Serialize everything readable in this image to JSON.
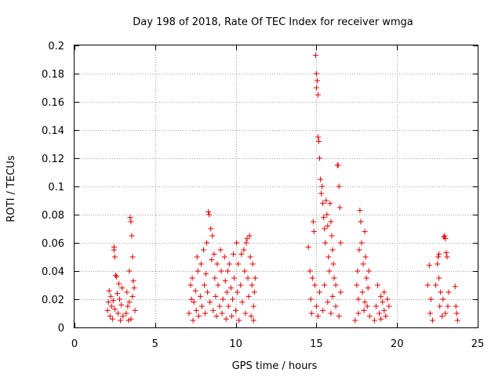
{
  "chart_data": {
    "type": "scatter",
    "title": "Day 198 of 2018, Rate Of TEC Index for receiver wmga",
    "xlabel": "GPS time / hours",
    "ylabel": "ROTI / TECUs",
    "xlim": [
      0,
      25
    ],
    "ylim": [
      0,
      0.2
    ],
    "grid": true,
    "marker": "+",
    "x_ticks": [
      0,
      5,
      10,
      15,
      20,
      25
    ],
    "x_tick_labels": [
      "0",
      "5",
      "10",
      "15",
      "20",
      "25"
    ],
    "y_ticks": [
      0,
      0.02,
      0.04,
      0.06,
      0.08,
      0.1,
      0.12,
      0.14,
      0.16,
      0.18,
      0.2
    ],
    "y_tick_labels": [
      "0",
      "0.02",
      "0.04",
      "0.06",
      "0.08",
      "0.1",
      "0.12",
      "0.14",
      "0.16",
      "0.18",
      "0.2"
    ],
    "series": [
      {
        "name": "wmga",
        "color": "#e00000",
        "points": [
          [
            2.05,
            0.012
          ],
          [
            2.1,
            0.018
          ],
          [
            2.15,
            0.026
          ],
          [
            2.2,
            0.008
          ],
          [
            2.25,
            0.022
          ],
          [
            2.3,
            0.015
          ],
          [
            2.35,
            0.006
          ],
          [
            2.4,
            0.019
          ],
          [
            2.45,
            0.057
          ],
          [
            2.45,
            0.055
          ],
          [
            2.5,
            0.05
          ],
          [
            2.5,
            0.013
          ],
          [
            2.55,
            0.037
          ],
          [
            2.6,
            0.036
          ],
          [
            2.65,
            0.024
          ],
          [
            2.7,
            0.01
          ],
          [
            2.75,
            0.031
          ],
          [
            2.8,
            0.02
          ],
          [
            2.85,
            0.005
          ],
          [
            2.9,
            0.016
          ],
          [
            2.95,
            0.028
          ],
          [
            3.0,
            0.008
          ],
          [
            3.2,
            0.01
          ],
          [
            3.25,
            0.025
          ],
          [
            3.3,
            0.015
          ],
          [
            3.35,
            0.005
          ],
          [
            3.4,
            0.04
          ],
          [
            3.45,
            0.078
          ],
          [
            3.5,
            0.075
          ],
          [
            3.55,
            0.065
          ],
          [
            3.6,
            0.05
          ],
          [
            3.65,
            0.033
          ],
          [
            3.7,
            0.028
          ],
          [
            3.75,
            0.012
          ],
          [
            3.5,
            0.006
          ],
          [
            3.4,
            0.018
          ],
          [
            3.6,
            0.022
          ],
          [
            7.1,
            0.01
          ],
          [
            7.2,
            0.03
          ],
          [
            7.25,
            0.02
          ],
          [
            7.3,
            0.035
          ],
          [
            7.35,
            0.005
          ],
          [
            7.4,
            0.018
          ],
          [
            7.5,
            0.026
          ],
          [
            7.55,
            0.012
          ],
          [
            7.6,
            0.05
          ],
          [
            7.65,
            0.04
          ],
          [
            7.7,
            0.008
          ],
          [
            7.8,
            0.022
          ],
          [
            7.85,
            0.045
          ],
          [
            7.9,
            0.015
          ],
          [
            8.0,
            0.055
          ],
          [
            8.05,
            0.03
          ],
          [
            8.1,
            0.01
          ],
          [
            8.15,
            0.038
          ],
          [
            8.2,
            0.06
          ],
          [
            8.25,
            0.025
          ],
          [
            8.3,
            0.082
          ],
          [
            8.35,
            0.08
          ],
          [
            8.4,
            0.018
          ],
          [
            8.45,
            0.07
          ],
          [
            8.5,
            0.048
          ],
          [
            8.55,
            0.065
          ],
          [
            8.6,
            0.012
          ],
          [
            8.65,
            0.052
          ],
          [
            8.7,
            0.035
          ],
          [
            8.75,
            0.022
          ],
          [
            8.8,
            0.008
          ],
          [
            8.85,
            0.045
          ],
          [
            8.9,
            0.03
          ],
          [
            9.0,
            0.015
          ],
          [
            9.05,
            0.055
          ],
          [
            9.1,
            0.04
          ],
          [
            9.15,
            0.01
          ],
          [
            9.2,
            0.02
          ],
          [
            9.3,
            0.05
          ],
          [
            9.35,
            0.033
          ],
          [
            9.4,
            0.006
          ],
          [
            9.45,
            0.025
          ],
          [
            9.5,
            0.04
          ],
          [
            9.55,
            0.015
          ],
          [
            9.6,
            0.045
          ],
          [
            9.7,
            0.028
          ],
          [
            9.75,
            0.008
          ],
          [
            9.8,
            0.02
          ],
          [
            9.85,
            0.052
          ],
          [
            9.9,
            0.035
          ],
          [
            10.0,
            0.012
          ],
          [
            10.05,
            0.06
          ],
          [
            10.1,
            0.025
          ],
          [
            10.15,
            0.045
          ],
          [
            10.2,
            0.005
          ],
          [
            10.3,
            0.03
          ],
          [
            10.35,
            0.052
          ],
          [
            10.4,
            0.018
          ],
          [
            10.5,
            0.055
          ],
          [
            10.55,
            0.04
          ],
          [
            10.6,
            0.01
          ],
          [
            10.65,
            0.06
          ],
          [
            10.7,
            0.063
          ],
          [
            10.75,
            0.035
          ],
          [
            10.8,
            0.022
          ],
          [
            10.85,
            0.065
          ],
          [
            10.9,
            0.05
          ],
          [
            10.95,
            0.008
          ],
          [
            11.0,
            0.03
          ],
          [
            11.05,
            0.045
          ],
          [
            11.1,
            0.015
          ],
          [
            11.15,
            0.025
          ],
          [
            11.2,
            0.035
          ],
          [
            11.1,
            0.005
          ],
          [
            14.5,
            0.057
          ],
          [
            14.6,
            0.04
          ],
          [
            14.65,
            0.02
          ],
          [
            14.7,
            0.01
          ],
          [
            14.75,
            0.035
          ],
          [
            14.8,
            0.075
          ],
          [
            14.85,
            0.068
          ],
          [
            14.9,
            0.03
          ],
          [
            14.95,
            0.193
          ],
          [
            15.0,
            0.18
          ],
          [
            15.0,
            0.17
          ],
          [
            15.05,
            0.175
          ],
          [
            15.1,
            0.165
          ],
          [
            15.1,
            0.135
          ],
          [
            15.15,
            0.132
          ],
          [
            15.2,
            0.12
          ],
          [
            15.25,
            0.105
          ],
          [
            15.3,
            0.095
          ],
          [
            15.35,
            0.1
          ],
          [
            15.4,
            0.088
          ],
          [
            15.45,
            0.078
          ],
          [
            15.5,
            0.07
          ],
          [
            15.55,
            0.06
          ],
          [
            15.6,
            0.09
          ],
          [
            15.65,
            0.08
          ],
          [
            15.7,
            0.072
          ],
          [
            15.75,
            0.05
          ],
          [
            15.8,
            0.04
          ],
          [
            15.85,
            0.088
          ],
          [
            15.9,
            0.075
          ],
          [
            15.95,
            0.065
          ],
          [
            16.0,
            0.055
          ],
          [
            16.05,
            0.045
          ],
          [
            16.1,
            0.035
          ],
          [
            16.2,
            0.03
          ],
          [
            16.3,
            0.115
          ],
          [
            16.35,
            0.115
          ],
          [
            16.4,
            0.1
          ],
          [
            16.45,
            0.085
          ],
          [
            16.5,
            0.06
          ],
          [
            15.0,
            0.015
          ],
          [
            15.1,
            0.008
          ],
          [
            15.2,
            0.025
          ],
          [
            15.4,
            0.012
          ],
          [
            15.5,
            0.03
          ],
          [
            15.7,
            0.018
          ],
          [
            15.9,
            0.01
          ],
          [
            16.0,
            0.022
          ],
          [
            16.2,
            0.015
          ],
          [
            16.4,
            0.008
          ],
          [
            16.5,
            0.025
          ],
          [
            17.4,
            0.005
          ],
          [
            17.5,
            0.03
          ],
          [
            17.55,
            0.04
          ],
          [
            17.6,
            0.01
          ],
          [
            17.65,
            0.055
          ],
          [
            17.7,
            0.083
          ],
          [
            17.75,
            0.075
          ],
          [
            17.8,
            0.06
          ],
          [
            17.85,
            0.025
          ],
          [
            17.9,
            0.045
          ],
          [
            17.95,
            0.012
          ],
          [
            18.0,
            0.068
          ],
          [
            18.05,
            0.05
          ],
          [
            18.1,
            0.035
          ],
          [
            18.15,
            0.015
          ],
          [
            18.2,
            0.028
          ],
          [
            18.25,
            0.04
          ],
          [
            18.3,
            0.008
          ],
          [
            17.6,
            0.02
          ],
          [
            18.0,
            0.018
          ],
          [
            18.6,
            0.005
          ],
          [
            18.7,
            0.015
          ],
          [
            18.8,
            0.03
          ],
          [
            18.9,
            0.01
          ],
          [
            19.0,
            0.022
          ],
          [
            19.1,
            0.018
          ],
          [
            19.2,
            0.012
          ],
          [
            19.3,
            0.008
          ],
          [
            19.4,
            0.02
          ],
          [
            19.5,
            0.015
          ],
          [
            19.0,
            0.006
          ],
          [
            19.2,
            0.025
          ],
          [
            21.9,
            0.03
          ],
          [
            22.0,
            0.044
          ],
          [
            22.05,
            0.01
          ],
          [
            22.1,
            0.02
          ],
          [
            22.2,
            0.005
          ],
          [
            22.4,
            0.03
          ],
          [
            22.5,
            0.045
          ],
          [
            22.55,
            0.05
          ],
          [
            22.6,
            0.052
          ],
          [
            22.65,
            0.015
          ],
          [
            22.7,
            0.025
          ],
          [
            22.8,
            0.008
          ],
          [
            22.85,
            0.02
          ],
          [
            22.9,
            0.064
          ],
          [
            22.95,
            0.065
          ],
          [
            23.0,
            0.063
          ],
          [
            23.05,
            0.053
          ],
          [
            23.1,
            0.05
          ],
          [
            23.15,
            0.015
          ],
          [
            23.2,
            0.025
          ],
          [
            23.0,
            0.01
          ],
          [
            22.6,
            0.035
          ],
          [
            23.6,
            0.029
          ],
          [
            23.65,
            0.015
          ],
          [
            23.7,
            0.01
          ],
          [
            23.75,
            0.005
          ]
        ]
      }
    ]
  }
}
